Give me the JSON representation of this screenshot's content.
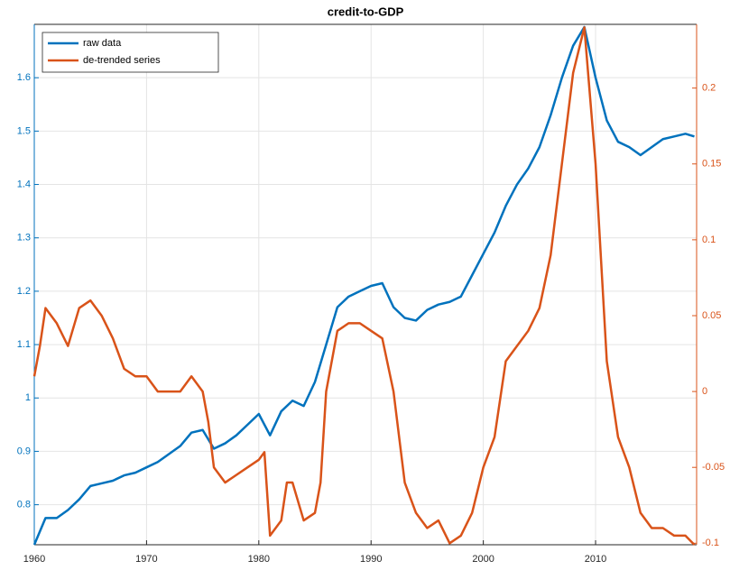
{
  "chart_data": {
    "type": "line",
    "title": "credit-to-GDP",
    "xlim": [
      1960,
      2019
    ],
    "xticks": [
      1960,
      1970,
      1980,
      1990,
      2000,
      2010
    ],
    "ylim": [
      0.725,
      1.7
    ],
    "yticks": [
      0.8,
      0.9,
      1,
      1.1,
      1.2,
      1.3,
      1.4,
      1.5,
      1.6
    ],
    "y2lim": [
      -0.101,
      0.242
    ],
    "y2ticks": [
      -0.1,
      -0.05,
      0,
      0.05,
      0.1,
      0.15,
      0.2
    ],
    "y_color": "#0072BD",
    "y2_color": "#D95319",
    "grid": true,
    "legend": "upper-left",
    "series": [
      {
        "name": "raw data",
        "color": "#0072BD",
        "x": [
          1960,
          1961,
          1962,
          1963,
          1964,
          1965,
          1966,
          1967,
          1968,
          1969,
          1970,
          1971,
          1972,
          1973,
          1974,
          1975,
          1976,
          1977,
          1978,
          1979,
          1980,
          1981,
          1982,
          1983,
          1984,
          1985,
          1986,
          1987,
          1988,
          1989,
          1990,
          1991,
          1992,
          1993,
          1994,
          1995,
          1996,
          1997,
          1998,
          1999,
          2000,
          2001,
          2002,
          2003,
          2004,
          2005,
          2006,
          2007,
          2008,
          2009,
          2010,
          2011,
          2012,
          2013,
          2014,
          2015,
          2016,
          2017,
          2018,
          2018.8
        ],
        "values": [
          0.725,
          0.775,
          0.775,
          0.79,
          0.81,
          0.835,
          0.84,
          0.845,
          0.855,
          0.86,
          0.87,
          0.88,
          0.895,
          0.91,
          0.935,
          0.94,
          0.905,
          0.915,
          0.93,
          0.95,
          0.97,
          0.93,
          0.975,
          0.995,
          0.985,
          1.03,
          1.1,
          1.17,
          1.19,
          1.2,
          1.21,
          1.215,
          1.17,
          1.15,
          1.145,
          1.165,
          1.175,
          1.18,
          1.19,
          1.23,
          1.27,
          1.31,
          1.36,
          1.4,
          1.43,
          1.47,
          1.53,
          1.6,
          1.66,
          1.695,
          1.6,
          1.52,
          1.48,
          1.47,
          1.455,
          1.47,
          1.485,
          1.49,
          1.495,
          1.49
        ]
      },
      {
        "name": "de-trended series",
        "color": "#D95319",
        "axis": "y2",
        "x": [
          1960,
          1960.5,
          1961,
          1962,
          1963,
          1964,
          1965,
          1966,
          1967,
          1968,
          1969,
          1970,
          1971,
          1972,
          1973,
          1974,
          1975,
          1975.5,
          1976,
          1977,
          1978,
          1979,
          1980,
          1980.5,
          1981,
          1982,
          1982.5,
          1983,
          1984,
          1985,
          1985.5,
          1986,
          1987,
          1988,
          1989,
          1990,
          1991,
          1992,
          1993,
          1994,
          1995,
          1996,
          1997,
          1998,
          1999,
          2000,
          2001,
          2002,
          2003,
          2004,
          2005,
          2006,
          2007,
          2008,
          2009,
          2010,
          2011,
          2012,
          2013,
          2014,
          2015,
          2016,
          2017,
          2018,
          2018.8
        ],
        "values": [
          0.01,
          0.03,
          0.055,
          0.045,
          0.03,
          0.055,
          0.06,
          0.05,
          0.035,
          0.015,
          0.01,
          0.01,
          0,
          0,
          0,
          0.01,
          0,
          -0.02,
          -0.05,
          -0.06,
          -0.055,
          -0.05,
          -0.045,
          -0.04,
          -0.095,
          -0.085,
          -0.06,
          -0.06,
          -0.085,
          -0.08,
          -0.06,
          0,
          0.04,
          0.045,
          0.045,
          0.04,
          0.035,
          0,
          -0.06,
          -0.08,
          -0.09,
          -0.085,
          -0.1,
          -0.095,
          -0.08,
          -0.05,
          -0.03,
          0.02,
          0.03,
          0.04,
          0.055,
          0.09,
          0.15,
          0.21,
          0.24,
          0.15,
          0.02,
          -0.03,
          -0.05,
          -0.08,
          -0.09,
          -0.09,
          -0.095,
          -0.095,
          -0.101
        ]
      }
    ]
  }
}
